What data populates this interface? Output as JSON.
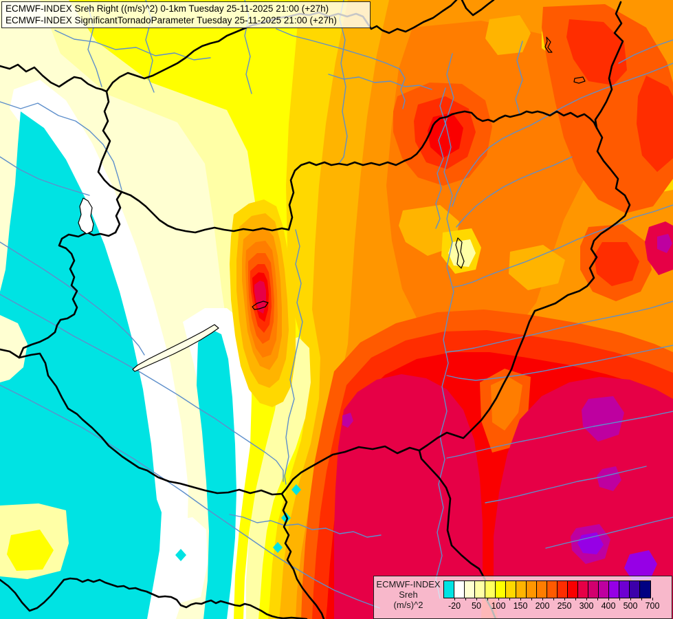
{
  "header": {
    "line1": "ECMWF-INDEX Sreh Right ((m/s)^2) 0-1km Tuesday 25-11-2025 21:00 (+27h)",
    "line2": "ECMWF-INDEX SignificantTornadoParameter Tuesday 25-11-2025 21:00 (+27h)"
  },
  "legend": {
    "model": "ECMWF-INDEX",
    "parameter": "Sreh",
    "units": "(m/s)^2",
    "tick_labels": [
      "-20",
      "50",
      "100",
      "150",
      "200",
      "250",
      "300",
      "400",
      "500",
      "700"
    ],
    "tick_positions": [
      1,
      3,
      5,
      7,
      9,
      11,
      13,
      15,
      17,
      19
    ],
    "cell_count": 20,
    "colors": [
      "#00E3E3",
      "#FFFFFF",
      "#FFFFD2",
      "#FFFFA6",
      "#FFFF5F",
      "#FFFF00",
      "#FFD800",
      "#FFB400",
      "#FF9600",
      "#FF7D00",
      "#FF5A00",
      "#FF2D00",
      "#FA0000",
      "#E60046",
      "#D2006E",
      "#BE00A0",
      "#9600E6",
      "#6E00D2",
      "#3C00AA",
      "#000082"
    ]
  },
  "map": {
    "border_color": "#000000",
    "river_color": "#5E8FCB",
    "background_color": "#FF9600"
  }
}
